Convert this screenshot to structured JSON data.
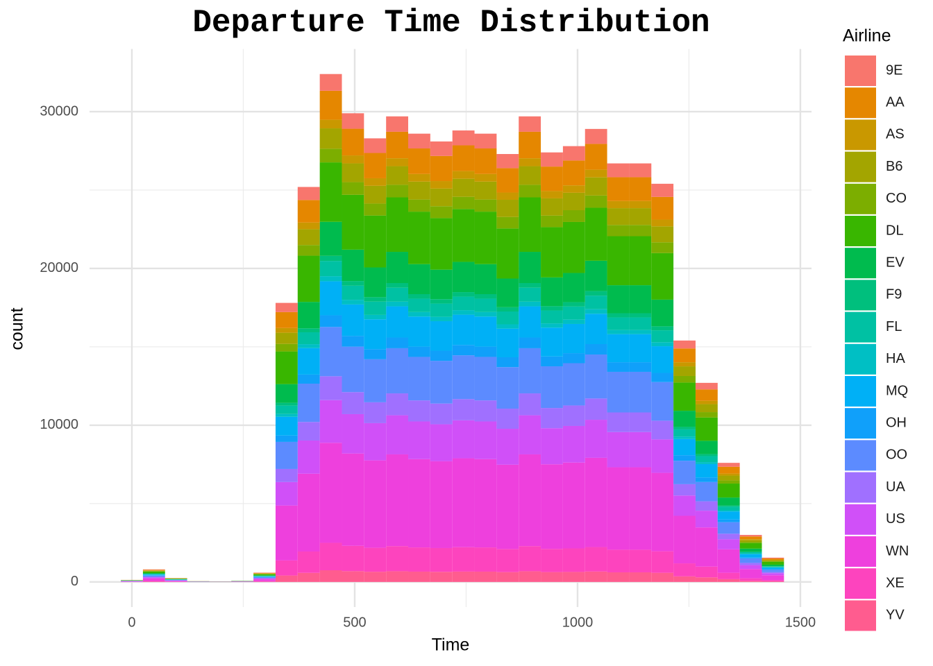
{
  "chart_data": {
    "type": "histogram",
    "stacked": true,
    "title": "Departure Time Distribution",
    "x_label": "Time",
    "y_label": "count",
    "legend_title": "Airline",
    "legend_position": "right",
    "grid": true,
    "xlim": [
      -95,
      1525
    ],
    "xticks": [
      0,
      500,
      1000,
      1500
    ],
    "x_minor_ticks": [
      250,
      750,
      1250
    ],
    "ylim": [
      -1600,
      34000
    ],
    "yticks": [
      0,
      10000,
      20000,
      30000
    ],
    "y_minor_ticks": [
      5000,
      15000,
      25000
    ],
    "bins": [
      -24.8,
      24.8,
      74.4,
      124,
      173.6,
      223.2,
      272.8,
      322.4,
      372,
      421.6,
      471.2,
      520.8,
      570.4,
      620,
      669.6,
      719.2,
      768.8,
      818.4,
      868,
      917.6,
      967.2,
      1016.8,
      1066.4,
      1116,
      1165.6,
      1215.2,
      1264.8,
      1314.4,
      1364,
      1413.6,
      1463.2
    ],
    "series": [
      {
        "name": "9E",
        "color": "#F8766D",
        "values": [
          4,
          26,
          8,
          2,
          1,
          3,
          20,
          587,
          832,
          1069,
          987,
          934,
          980,
          944,
          927,
          950,
          944,
          901,
          980,
          904,
          917,
          954,
          881,
          881,
          838,
          508,
          419,
          251,
          99,
          51
        ]
      },
      {
        "name": "AA",
        "color": "#E58700",
        "values": [
          7,
          46,
          14,
          3,
          2,
          5,
          34,
          1015,
          1436,
          1847,
          1704,
          1613,
          1693,
          1630,
          1602,
          1642,
          1630,
          1556,
          1693,
          1562,
          1585,
          1647,
          1522,
          1522,
          1448,
          878,
          724,
          433,
          171,
          88
        ]
      },
      {
        "name": "AS",
        "color": "#C99800",
        "values": [
          2,
          14,
          4,
          1,
          1,
          1,
          10,
          303,
          428,
          551,
          508,
          481,
          505,
          486,
          478,
          490,
          486,
          464,
          505,
          466,
          473,
          491,
          454,
          454,
          432,
          262,
          216,
          129,
          51,
          26
        ]
      },
      {
        "name": "B6",
        "color": "#A3A500",
        "values": [
          5,
          32,
          10,
          2,
          1,
          3,
          24,
          712,
          1008,
          1296,
          1196,
          1132,
          1188,
          1144,
          1124,
          1152,
          1144,
          1092,
          1188,
          1096,
          1112,
          1156,
          1068,
          1068,
          1016,
          616,
          508,
          304,
          120,
          62
        ]
      },
      {
        "name": "CO",
        "color": "#7CAE00",
        "values": [
          4,
          22,
          7,
          1,
          1,
          2,
          16,
          481,
          680,
          875,
          807,
          764,
          802,
          772,
          759,
          778,
          772,
          737,
          802,
          740,
          751,
          780,
          721,
          721,
          686,
          416,
          343,
          205,
          81,
          42
        ]
      },
      {
        "name": "DL",
        "color": "#39B600",
        "values": [
          15,
          94,
          29,
          6,
          4,
          9,
          70,
          2083,
          2948,
          3791,
          3498,
          3311,
          3475,
          3346,
          3288,
          3370,
          3346,
          3194,
          3475,
          3206,
          3253,
          3381,
          3124,
          3124,
          2972,
          1802,
          1486,
          889,
          351,
          181
        ]
      },
      {
        "name": "EV",
        "color": "#00BB4E",
        "values": [
          9,
          54,
          17,
          3,
          2,
          5,
          40,
          1193,
          1688,
          2171,
          2003,
          1896,
          1990,
          1916,
          1883,
          1930,
          1916,
          1829,
          1990,
          1836,
          1863,
          1936,
          1789,
          1789,
          1702,
          1032,
          851,
          509,
          201,
          104
        ]
      },
      {
        "name": "F9",
        "color": "#00BF7D",
        "values": [
          1,
          8,
          3,
          1,
          0,
          1,
          6,
          178,
          252,
          324,
          299,
          283,
          297,
          286,
          281,
          288,
          286,
          273,
          297,
          274,
          278,
          289,
          267,
          267,
          254,
          154,
          127,
          76,
          30,
          16
        ]
      },
      {
        "name": "FL",
        "color": "#00C1A3",
        "values": [
          4,
          24,
          8,
          2,
          1,
          2,
          18,
          534,
          756,
          972,
          897,
          849,
          891,
          858,
          843,
          864,
          858,
          819,
          891,
          822,
          834,
          867,
          801,
          801,
          762,
          462,
          381,
          228,
          90,
          47
        ]
      },
      {
        "name": "HA",
        "color": "#00BFC4",
        "values": [
          1,
          8,
          3,
          1,
          0,
          1,
          6,
          178,
          252,
          324,
          299,
          283,
          297,
          286,
          281,
          288,
          286,
          273,
          297,
          274,
          278,
          289,
          267,
          267,
          254,
          154,
          127,
          76,
          30,
          16
        ]
      },
      {
        "name": "MQ",
        "color": "#00B0F6",
        "values": [
          9,
          54,
          17,
          3,
          2,
          5,
          40,
          1193,
          1688,
          2171,
          2003,
          1896,
          1990,
          1916,
          1883,
          1930,
          1916,
          1829,
          1990,
          1836,
          1863,
          1936,
          1789,
          1789,
          1702,
          1032,
          851,
          509,
          201,
          104
        ]
      },
      {
        "name": "OH",
        "color": "#10A0FA",
        "values": [
          3,
          18,
          6,
          1,
          1,
          2,
          14,
          409,
          580,
          745,
          688,
          651,
          683,
          658,
          646,
          662,
          658,
          628,
          683,
          630,
          639,
          665,
          614,
          614,
          584,
          354,
          292,
          175,
          69,
          36
        ]
      },
      {
        "name": "OO",
        "color": "#5C8BFF",
        "values": [
          13,
          78,
          24,
          5,
          3,
          8,
          58,
          1727,
          2444,
          3143,
          2900,
          2745,
          2881,
          2774,
          2726,
          2794,
          2774,
          2648,
          2881,
          2658,
          2697,
          2803,
          2590,
          2590,
          2464,
          1494,
          1232,
          737,
          291,
          150
        ]
      },
      {
        "name": "UA",
        "color": "#A070FF",
        "values": [
          6,
          38,
          12,
          2,
          1,
          4,
          28,
          837,
          1184,
          1523,
          1405,
          1330,
          1396,
          1344,
          1321,
          1354,
          1344,
          1283,
          1396,
          1288,
          1307,
          1358,
          1255,
          1255,
          1194,
          724,
          597,
          357,
          141,
          73
        ]
      },
      {
        "name": "US",
        "color": "#D050F8",
        "values": [
          11,
          67,
          21,
          4,
          3,
          7,
          50,
          1495,
          2117,
          2722,
          2512,
          2377,
          2495,
          2402,
          2360,
          2419,
          2402,
          2293,
          2495,
          2302,
          2335,
          2428,
          2243,
          2243,
          2134,
          1294,
          1067,
          638,
          252,
          130
        ]
      },
      {
        "name": "WN",
        "color": "#EE40DD",
        "values": [
          26,
          158,
          49,
          10,
          6,
          16,
          118,
          3507,
          4964,
          6383,
          5890,
          5575,
          5851,
          5634,
          5536,
          5674,
          5634,
          5378,
          5851,
          5398,
          5477,
          5693,
          5260,
          5260,
          5004,
          3034,
          2502,
          1497,
          591,
          305
        ]
      },
      {
        "name": "XE",
        "color": "#FD44BE",
        "values": [
          7,
          43,
          14,
          3,
          2,
          4,
          32,
          961,
          1361,
          1750,
          1615,
          1528,
          1604,
          1544,
          1517,
          1555,
          1544,
          1474,
          1604,
          1480,
          1501,
          1561,
          1442,
          1442,
          1372,
          832,
          686,
          410,
          162,
          84
        ]
      },
      {
        "name": "YV",
        "color": "#FF5C8F",
        "values": [
          3,
          18,
          6,
          1,
          1,
          2,
          14,
          409,
          580,
          745,
          688,
          651,
          683,
          658,
          646,
          662,
          658,
          628,
          683,
          630,
          639,
          665,
          614,
          614,
          584,
          354,
          292,
          175,
          69,
          36
        ]
      }
    ]
  }
}
